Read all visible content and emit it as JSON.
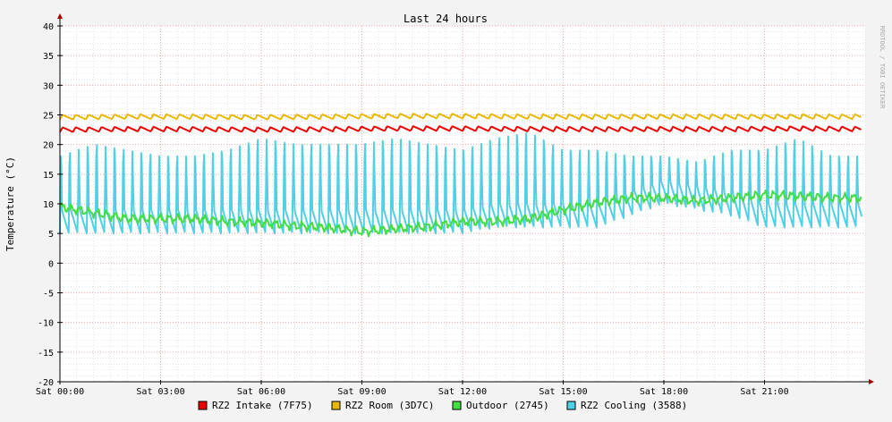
{
  "chart_data": {
    "type": "line",
    "title": "Last 24 hours",
    "ylabel": "Temperature (°C)",
    "watermark": "RRDTOOL / TOBI OETIKER",
    "ylim": [
      -20,
      40
    ],
    "yticks": [
      40,
      35,
      30,
      25,
      20,
      15,
      10,
      5,
      0,
      -5,
      -10,
      -15,
      -20
    ],
    "xlim": [
      0,
      24
    ],
    "x_unit": "hours since Sat 00:00",
    "xticks": [
      {
        "x": 0,
        "label": "Sat 00:00"
      },
      {
        "x": 3,
        "label": "Sat 03:00"
      },
      {
        "x": 6,
        "label": "Sat 06:00"
      },
      {
        "x": 9,
        "label": "Sat 09:00"
      },
      {
        "x": 12,
        "label": "Sat 12:00"
      },
      {
        "x": 15,
        "label": "Sat 15:00"
      },
      {
        "x": 18,
        "label": "Sat 18:00"
      },
      {
        "x": 21,
        "label": "Sat 21:00"
      }
    ],
    "grid": true,
    "legend_position": "bottom",
    "series": [
      {
        "name": "RZ2 Intake (7F75)",
        "color": "#ee0000",
        "x": [
          0,
          2,
          4,
          6,
          8,
          10,
          12,
          14,
          16,
          18,
          20,
          22,
          24
        ],
        "values": [
          22.5,
          22.6,
          22.6,
          22.5,
          22.6,
          22.7,
          22.7,
          22.6,
          22.6,
          22.6,
          22.6,
          22.7,
          22.6
        ]
      },
      {
        "name": "RZ2 Room (3D7C)",
        "color": "#e8b800",
        "x": [
          0,
          2,
          4,
          6,
          8,
          10,
          12,
          14,
          16,
          18,
          20,
          22,
          24
        ],
        "values": [
          24.6,
          24.7,
          24.7,
          24.6,
          24.7,
          24.8,
          24.8,
          24.7,
          24.7,
          24.7,
          24.7,
          24.7,
          24.7
        ]
      },
      {
        "name": "Outdoor (2745)",
        "color": "#44dd44",
        "x": [
          0,
          1,
          2,
          3,
          4,
          5,
          6,
          7,
          8,
          9,
          10,
          11,
          12,
          13,
          14,
          15,
          16,
          17,
          18,
          19,
          20,
          21,
          22,
          23,
          23.9
        ],
        "values": [
          9.5,
          8.5,
          7.5,
          7.5,
          7.5,
          7,
          6.8,
          6.3,
          6.0,
          5.3,
          5.8,
          6.2,
          7.0,
          7.0,
          7.5,
          9.0,
          10.2,
          11.0,
          11.0,
          10.5,
          11.0,
          11.5,
          11.3,
          11.0,
          11.0
        ]
      },
      {
        "name": "RZ2 Cooling (3588)",
        "color": "#4fd0e4",
        "x": [
          0,
          1,
          2,
          3,
          4,
          5,
          6,
          7,
          8,
          9,
          10,
          11,
          12,
          13,
          14,
          15,
          16,
          17,
          18,
          19,
          20,
          21,
          22,
          23,
          23.9
        ],
        "values": [
          5,
          5,
          5,
          5,
          5,
          5,
          5,
          5,
          5,
          5,
          5,
          5,
          5,
          6,
          6,
          6,
          6,
          8,
          10,
          9,
          8,
          6,
          6,
          6,
          6
        ],
        "peak_values": [
          18,
          20,
          19,
          18,
          18,
          19,
          21,
          20,
          20,
          20,
          21,
          20,
          19,
          21,
          22,
          19,
          19,
          18,
          18,
          17,
          19,
          19,
          21,
          18,
          18
        ]
      }
    ]
  }
}
